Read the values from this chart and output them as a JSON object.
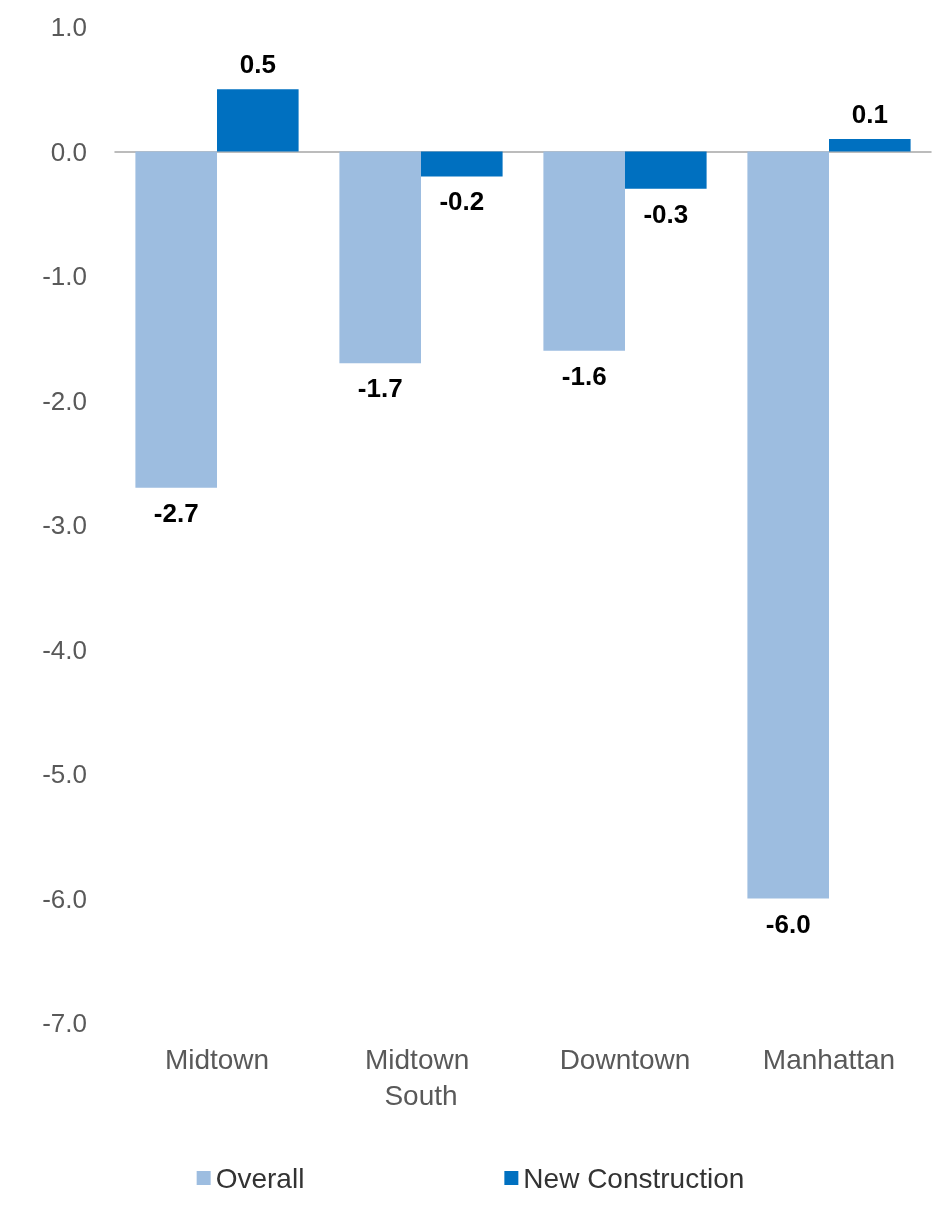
{
  "chart_data": {
    "type": "bar",
    "categories": [
      "Midtown",
      "Midtown South",
      "Downtown",
      "Manhattan"
    ],
    "series": [
      {
        "name": "Overall",
        "color": "#9dbde0",
        "values": [
          -2.7,
          -1.7,
          -1.6,
          -6.0
        ],
        "value_labels": [
          "-2.7",
          "-1.7",
          "-1.6",
          "-6.0"
        ]
      },
      {
        "name": "New Construction",
        "color": "#0070c0",
        "values": [
          0.5,
          -0.2,
          -0.3,
          0.1
        ],
        "value_labels": [
          "0.5",
          "-0.2",
          "-0.3",
          "0.1"
        ]
      }
    ],
    "ylim": [
      -7,
      1
    ],
    "yticks": [
      {
        "value": -7,
        "label": "-7.0"
      },
      {
        "value": -6,
        "label": "-6.0"
      },
      {
        "value": -5,
        "label": "-5.0"
      },
      {
        "value": -4,
        "label": "-4.0"
      },
      {
        "value": -3,
        "label": "-3.0"
      },
      {
        "value": -2,
        "label": "-2.0"
      },
      {
        "value": -1,
        "label": "-1.0"
      },
      {
        "value": 0,
        "label": "0.0"
      },
      {
        "value": 1,
        "label": "1.0"
      }
    ],
    "legend": "bottom"
  }
}
